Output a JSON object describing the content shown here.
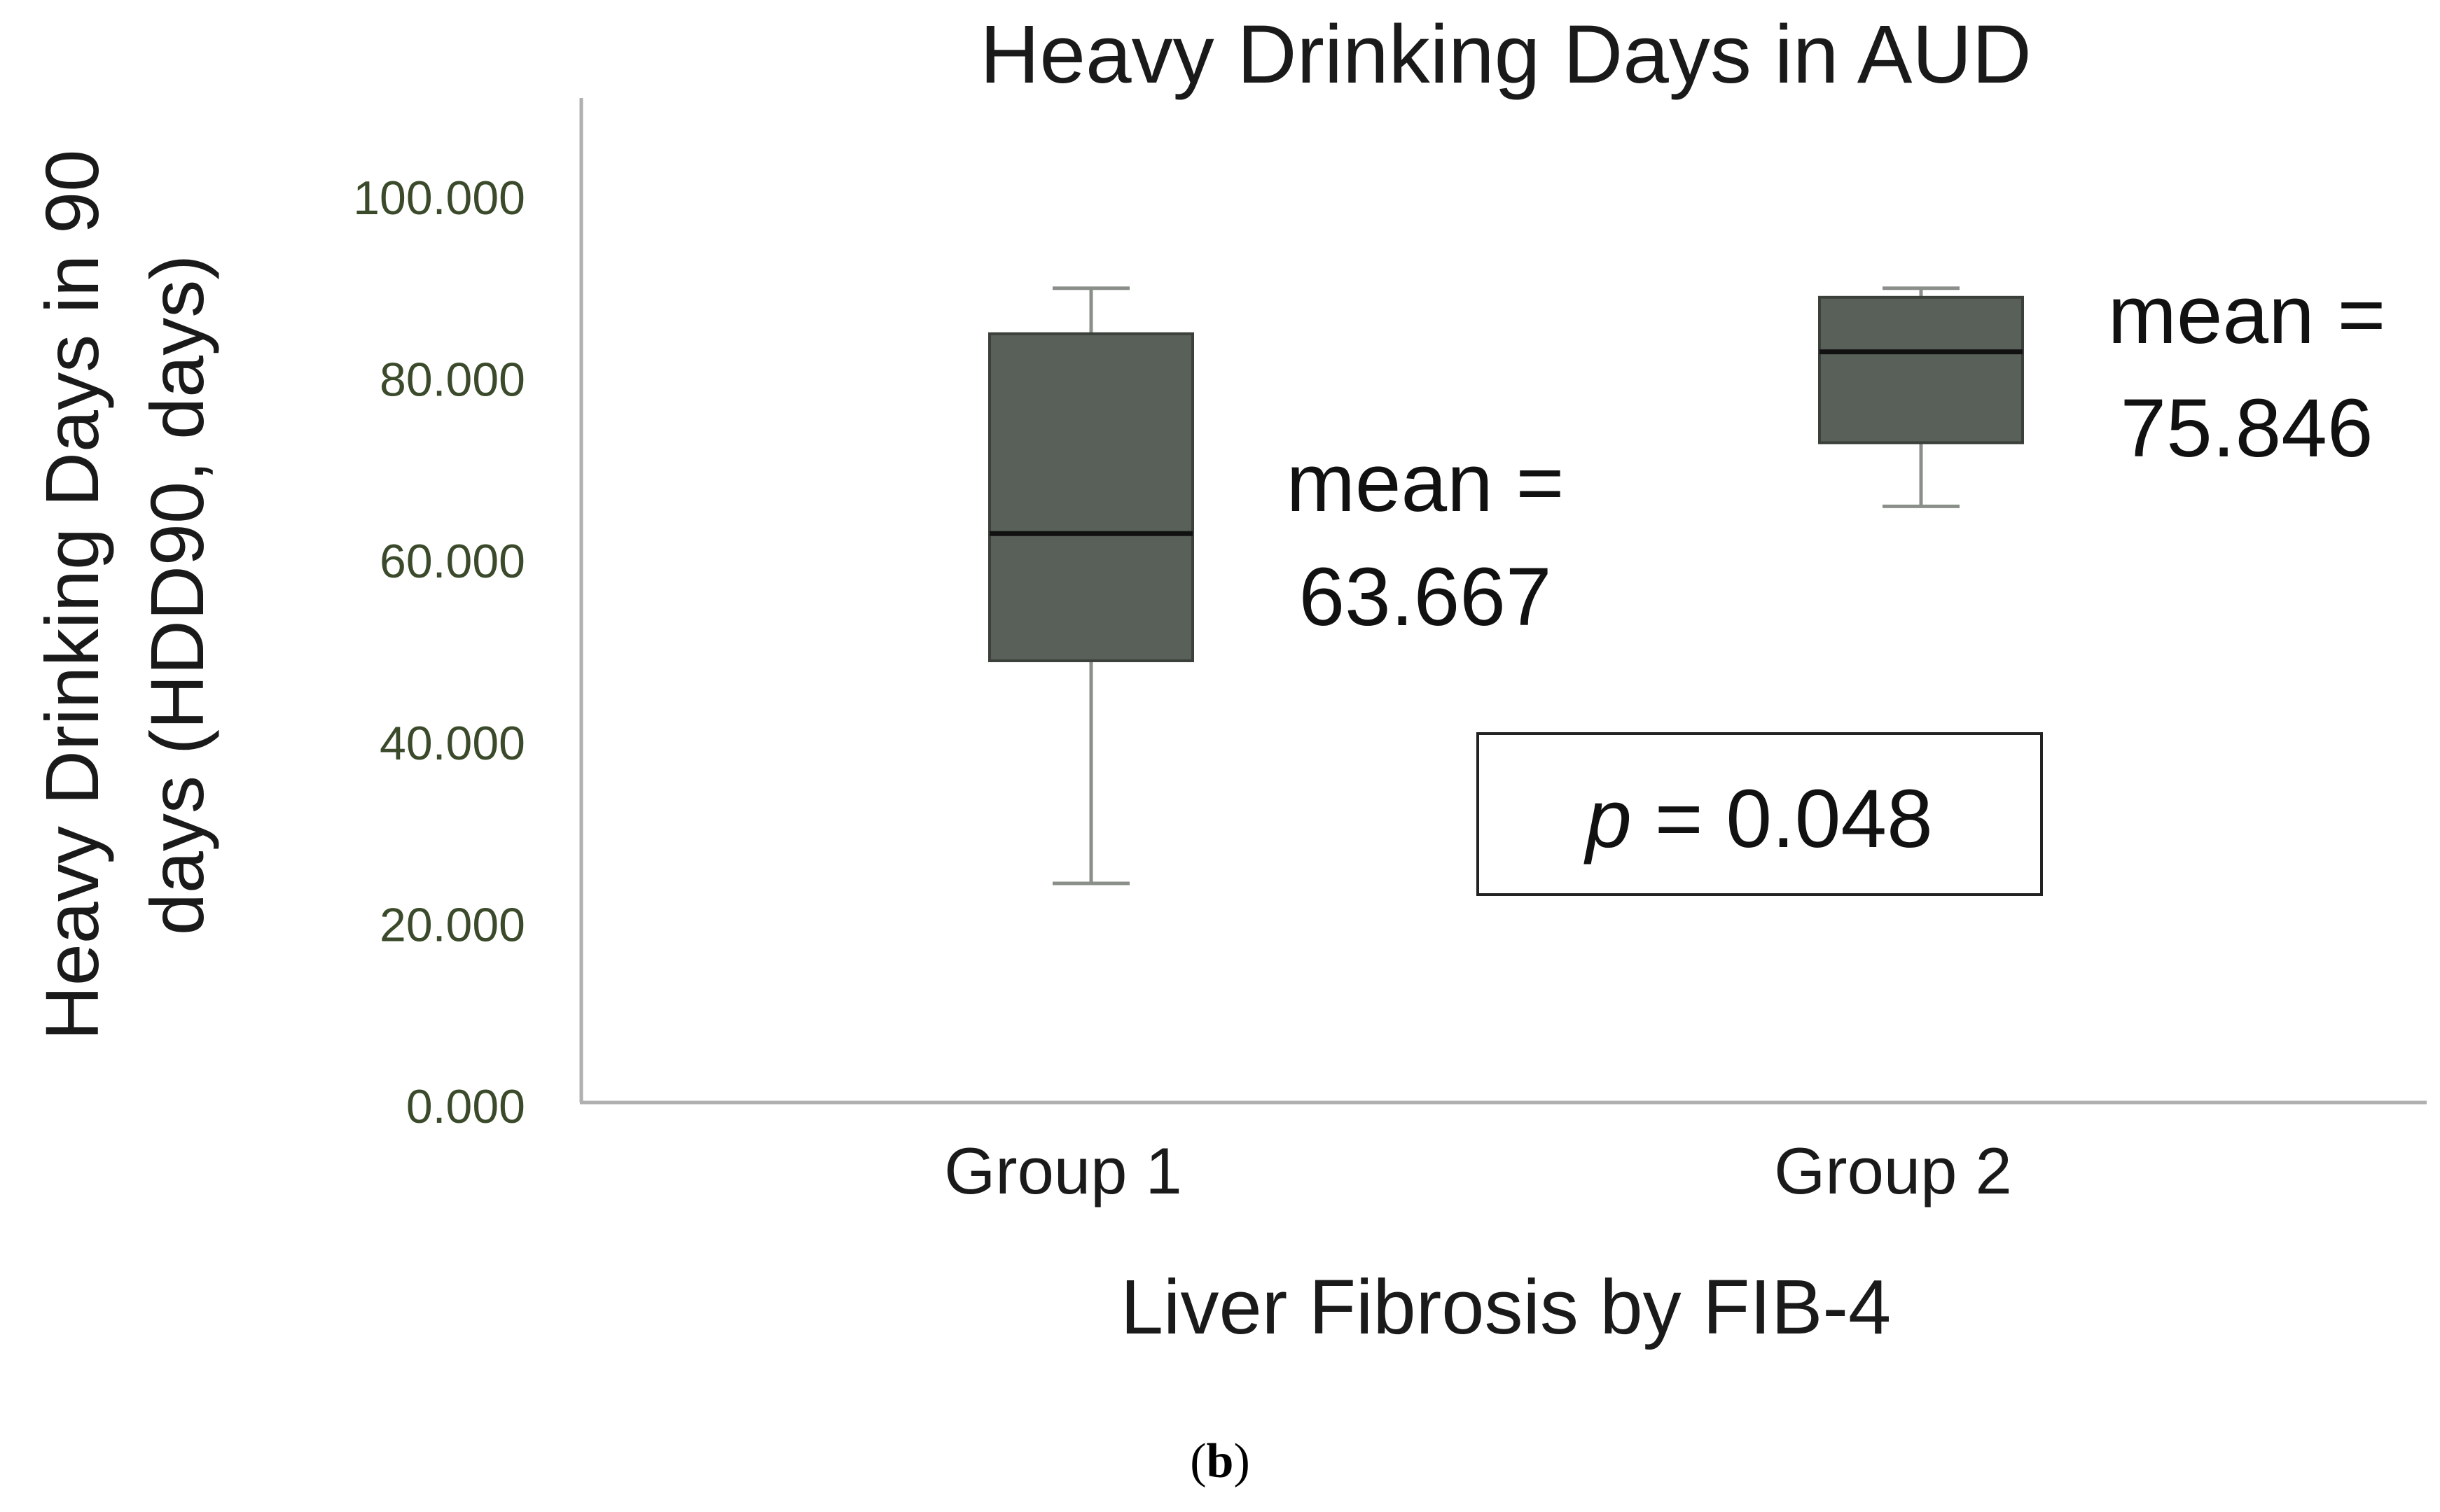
{
  "chart_data": {
    "type": "box",
    "title": "Heavy Drinking Days in AUD",
    "ylabel_line1": "Heavy Drinking Days in 90",
    "ylabel_line2": "days (HDD90, days)",
    "xlabel": "Liver Fibrosis by FIB-4",
    "ylim": [
      0,
      110
    ],
    "yticks": [
      0,
      20,
      40,
      60,
      80,
      100
    ],
    "ytick_labels": [
      "0.000",
      "20.000",
      "40.000",
      "60.000",
      "80.000",
      "100.000"
    ],
    "grid": false,
    "categories": [
      "Group 1",
      "Group 2"
    ],
    "boxes": [
      {
        "category": "Group 1",
        "whisker_low": 24.5,
        "q1": 49,
        "median": 63,
        "q3": 85,
        "whisker_high": 90,
        "annotation_line1": "mean =",
        "annotation_line2": "63.667"
      },
      {
        "category": "Group 2",
        "whisker_low": 66,
        "q1": 73,
        "median": 83,
        "q3": 89,
        "whisker_high": 90,
        "annotation_line1": "mean =",
        "annotation_line2": "75.846"
      }
    ],
    "pvalue": {
      "label": "p",
      "text": " = 0.048"
    },
    "colors": {
      "box_fill": "#596059",
      "box_stroke": "#3b403b",
      "median": "#111111",
      "whisker": "#8a8f8a",
      "axis": "#b0b0b0",
      "tick_text": "#3a4a2a"
    }
  },
  "panel_label": {
    "open": "(",
    "letter": "b",
    "close": ")"
  }
}
